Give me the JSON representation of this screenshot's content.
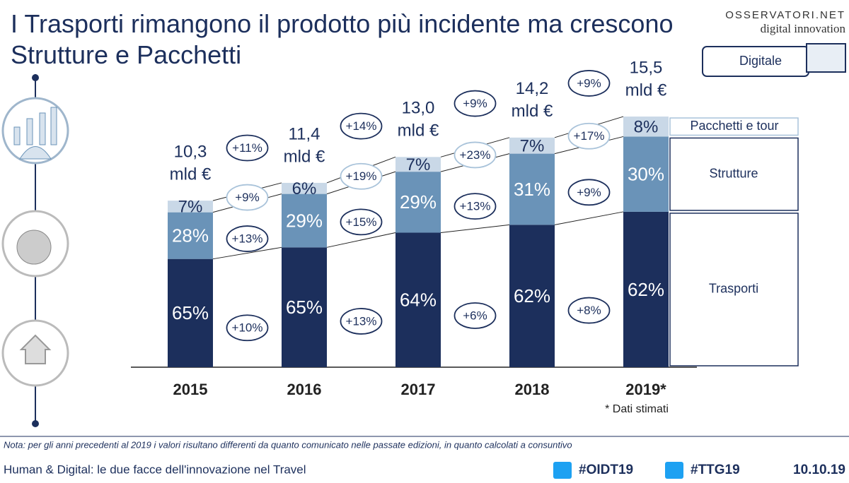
{
  "chart_data": {
    "type": "bar",
    "stacked": true,
    "title": "I Trasporti rimangono il prodotto più incidente ma crescono Strutture e Pacchetti",
    "categories": [
      "2015",
      "2016",
      "2017",
      "2018",
      "2019*"
    ],
    "footnote": "* Dati stimati",
    "totals": {
      "values": [
        10.3,
        11.4,
        13.0,
        14.2,
        15.5
      ],
      "value_labels": [
        "10,3",
        "11,4",
        "13,0",
        "14,2",
        "15,5"
      ],
      "unit": "mld €",
      "growth": [
        11,
        14,
        9,
        9
      ],
      "growth_labels": [
        "+11%",
        "+14%",
        "+9%",
        "+9%"
      ]
    },
    "series": [
      {
        "name": "Trasporti",
        "color": "#1c2f5c",
        "values": [
          65,
          65,
          64,
          62,
          62
        ],
        "value_labels": [
          "65%",
          "65%",
          "64%",
          "62%",
          "62%"
        ],
        "growth": [
          10,
          13,
          6,
          8
        ],
        "growth_labels": [
          "+10%",
          "+13%",
          "+6%",
          "+8%"
        ]
      },
      {
        "name": "Strutture",
        "color": "#6a93b8",
        "values": [
          28,
          29,
          29,
          31,
          30
        ],
        "value_labels": [
          "28%",
          "29%",
          "29%",
          "31%",
          "30%"
        ],
        "growth": [
          13,
          15,
          13,
          9
        ],
        "growth_labels": [
          "+13%",
          "+15%",
          "+13%",
          "+9%"
        ]
      },
      {
        "name": "Pacchetti e tour",
        "color": "#c9d8e7",
        "values": [
          7,
          6,
          7,
          7,
          8
        ],
        "value_labels": [
          "7%",
          "6%",
          "7%",
          "7%",
          "8%"
        ],
        "growth": [
          9,
          19,
          23,
          17
        ],
        "growth_labels": [
          "+9%",
          "+19%",
          "+23%",
          "+17%"
        ]
      }
    ]
  },
  "logo": {
    "name": "OSSERVATORI.NET",
    "tagline": "digital innovation"
  },
  "badge": "Digitale",
  "note": "Nota: per gli anni precedenti al 2019 i valori risultano differenti da quanto comunicato nelle passate edizioni, in quanto calcolati a consuntivo",
  "footer": {
    "text": "Human & Digital: le due facce dell'innovazione nel Travel",
    "tags": [
      "#OIDT19",
      "#TTG19"
    ],
    "date": "10.10.19"
  }
}
